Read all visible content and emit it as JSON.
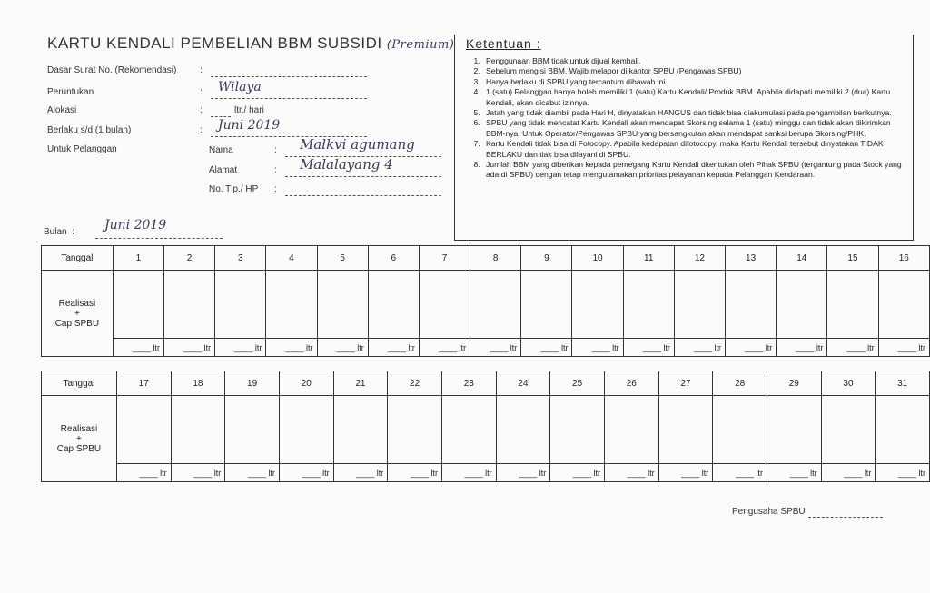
{
  "title": "KARTU KENDALI PEMBELIAN BBM SUBSIDI",
  "title_handwritten": "(Premium)",
  "fields": [
    {
      "label": "Dasar Surat No. (Rekomendasi)",
      "value": ""
    },
    {
      "label": "Peruntukan",
      "value": "Wilaya"
    },
    {
      "label": "Alokasi",
      "value": "",
      "suffix": "ltr./ hari"
    },
    {
      "label": "Berlaku s/d  (1 bulan)",
      "value": "Juni 2019"
    },
    {
      "label": "Untuk Pelanggan",
      "value": ""
    }
  ],
  "customer": [
    {
      "label": "Nama",
      "value": "Malkvi agumang"
    },
    {
      "label": "Alamat",
      "value": "Malalayang 4"
    },
    {
      "label": "No. Tlp./ HP",
      "value": ""
    }
  ],
  "bulan": {
    "label": "Bulan",
    "value": "Juni 2019"
  },
  "ketentuan": {
    "title": "Ketentuan :",
    "items": [
      "Penggunaan BBM tidak untuk dijual kembali.",
      "Sebelum mengisi BBM, Wajib melapor di kantor SPBU (Pengawas SPBU)",
      "Hanya berlaku di SPBU yang tercantum dibawah ini.",
      "1 (satu) Pelanggan hanya boleh memiliki 1 (satu) Kartu Kendali/ Produk BBM. Apabila didapati memiliki 2 (dua) Kartu Kendali, akan dicabut izinnya.",
      "Jatah yang tidak diambil pada Hari H, dinyatakan HANGUS dan tidak bisa diakumulasi pada pengambilan berikutnya.",
      "SPBU yang tidak mencatat Kartu Kendali akan mendapat Skorsing selama 1 (satu) minggu dan tidak akan dikirimkan BBM-nya. Untuk Operator/Pengawas SPBU yang bersangkutan akan mendapat sanksi berupa Skorsing/PHK.",
      "Kartu Kendali tidak bisa di Fotocopy. Apabila kedapatan difotocopy, maka Kartu Kendali tersebut dinyatakan TIDAK BERLAKU dan tiak bisa dilayani di SPBU.",
      "Jumlah BBM yang diberikan kepada pemegang Kartu Kendali ditentukan oleh Pihak SPBU (tergantung pada Stock yang ada di SPBU) dengan tetap mengutamakan prioritas pelayanan kepada Pelanggan Kendaraan."
    ]
  },
  "table": {
    "tanggal_label": "Tanggal",
    "realisasi_label": "Realisasi",
    "plus": "+",
    "cap_label": "Cap SPBU",
    "unit": "ltr",
    "days_1": [
      "1",
      "2",
      "3",
      "4",
      "5",
      "6",
      "7",
      "8",
      "9",
      "10",
      "11",
      "12",
      "13",
      "14",
      "15",
      "16"
    ],
    "days_2": [
      "17",
      "18",
      "19",
      "20",
      "21",
      "22",
      "23",
      "24",
      "25",
      "26",
      "27",
      "28",
      "29",
      "30",
      "31"
    ]
  },
  "footer": {
    "pengusaha": "Pengusaha SPBU"
  }
}
